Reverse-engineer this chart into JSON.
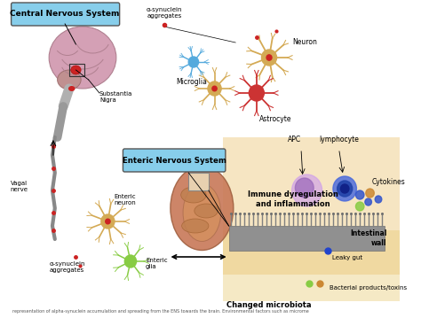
{
  "bg_color": "#ffffff",
  "labels": {
    "cns_box": "Central Nervous System",
    "ens_box": "Enteric Nervous System",
    "vagal_nerve": "Vagal\nnerve",
    "substantia_nigra": "Substantia\nNigra",
    "neuron": "Neuron",
    "microglia": "Microglia",
    "astrocyte": "Astrocyte",
    "alpha_syn_top": "α-synuclein\naggregates",
    "enteric_neuron": "Enteric\nneuron",
    "enteric_glia": "Enteric\nglia",
    "alpha_syn_bottom": "α-synuclein\naggregates",
    "apc": "APC",
    "lymphocyte": "lymphocyte",
    "cytokines": "Cytokines",
    "immune": "Immune dyregulation\nand inflammation",
    "intestinal_wall": "Intestinal\nwall",
    "leaky_gut": "Leaky gut",
    "bacterial": "Bacterial products/toxins",
    "changed_microbiota": "Changed microbiota",
    "caption": "representation of alpha-synuclein accumulation and spreading from the ENS towards the brain. Environmental factors such as microme"
  },
  "cns_box_color": "#87ceeb",
  "ens_box_color": "#87ceeb",
  "brain_color": "#d4a0b5",
  "brainstem_color": "#b0b0b0",
  "nerve_color": "#a0a0a0",
  "immune_bg": "#f0d090",
  "wall_color": "#909090",
  "wall_cilia_color": "#808080",
  "neuron_color": "#d4aa55",
  "microglia_color": "#55aadd",
  "astrocyte_color": "#cc3333",
  "glia_color": "#88cc44",
  "apc_color": "#9966bb",
  "lymph_color": "#3355cc",
  "red_dot": "#cc2222"
}
